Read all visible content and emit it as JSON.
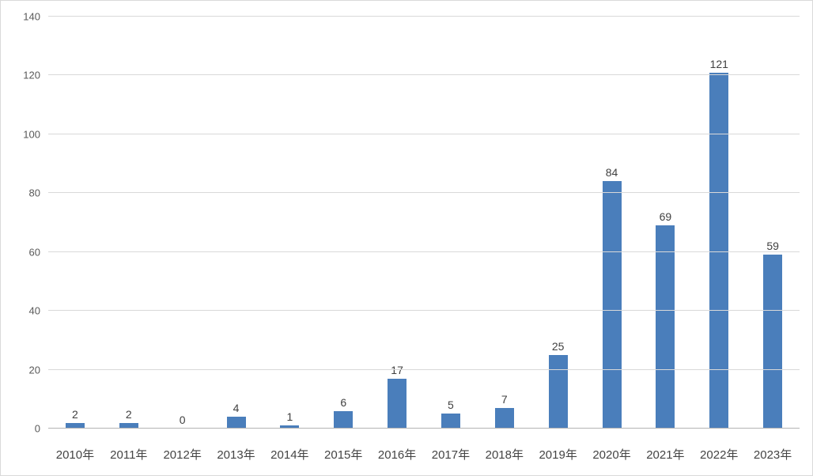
{
  "chart_data": {
    "type": "bar",
    "title": "",
    "xlabel": "",
    "ylabel": "",
    "categories": [
      "2010年",
      "2011年",
      "2012年",
      "2013年",
      "2014年",
      "2015年",
      "2016年",
      "2017年",
      "2018年",
      "2019年",
      "2020年",
      "2021年",
      "2022年",
      "2023年"
    ],
    "values": [
      2,
      2,
      0,
      4,
      1,
      6,
      17,
      5,
      7,
      25,
      84,
      69,
      121,
      59
    ],
    "ylim": [
      0,
      140
    ],
    "yticks": [
      0,
      20,
      40,
      60,
      80,
      100,
      120,
      140
    ],
    "grid": true,
    "legend_position": "none",
    "data_labels": true,
    "colors": {
      "bar": "#4a7ebb",
      "gridline": "#d9d9d9",
      "axis": "#b3b3b3",
      "value_label": "#404040",
      "tick_label": "#595959",
      "background": "#ffffff",
      "frame_border": "#d9d9d9"
    }
  }
}
